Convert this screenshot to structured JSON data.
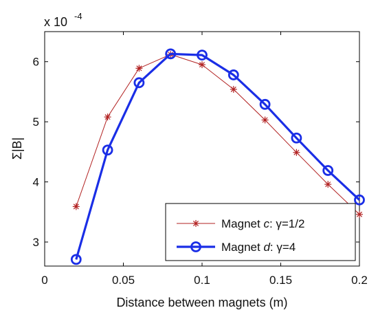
{
  "chart_data": {
    "type": "line",
    "xlabel": "Distance between magnets (m)",
    "ylabel": "Σ|B|",
    "scale_label": {
      "prefix": "x 10",
      "exponent": "-4"
    },
    "xlim": [
      0,
      0.2
    ],
    "ylim": [
      2.6,
      6.5
    ],
    "x_ticks": [
      0,
      0.05,
      0.1,
      0.15,
      0.2
    ],
    "x_tick_labels": [
      "0",
      "0.05",
      "0.1",
      "0.15",
      "0.2"
    ],
    "y_ticks": [
      3,
      4,
      5,
      6
    ],
    "y_tick_labels": [
      "3",
      "4",
      "5",
      "6"
    ],
    "grid": false,
    "legend_position": "bottom-right",
    "x": [
      0.02,
      0.04,
      0.06,
      0.08,
      0.1,
      0.12,
      0.14,
      0.16,
      0.18,
      0.2
    ],
    "series": [
      {
        "name": "Magnet c: γ=1/2",
        "legend_parts": [
          "Magnet ",
          "c",
          ": γ=1/2"
        ],
        "color": "#b22222",
        "marker": "asterisk",
        "values": [
          3.59,
          5.08,
          5.89,
          6.12,
          5.95,
          5.54,
          5.03,
          4.49,
          3.96,
          3.46
        ]
      },
      {
        "name": "Magnet d: γ=4",
        "legend_parts": [
          "Magnet ",
          "d",
          ": γ=4"
        ],
        "color": "#1a2ee6",
        "marker": "circle",
        "values": [
          2.71,
          4.53,
          5.65,
          6.13,
          6.11,
          5.78,
          5.29,
          4.73,
          4.19,
          3.7
        ]
      }
    ]
  }
}
